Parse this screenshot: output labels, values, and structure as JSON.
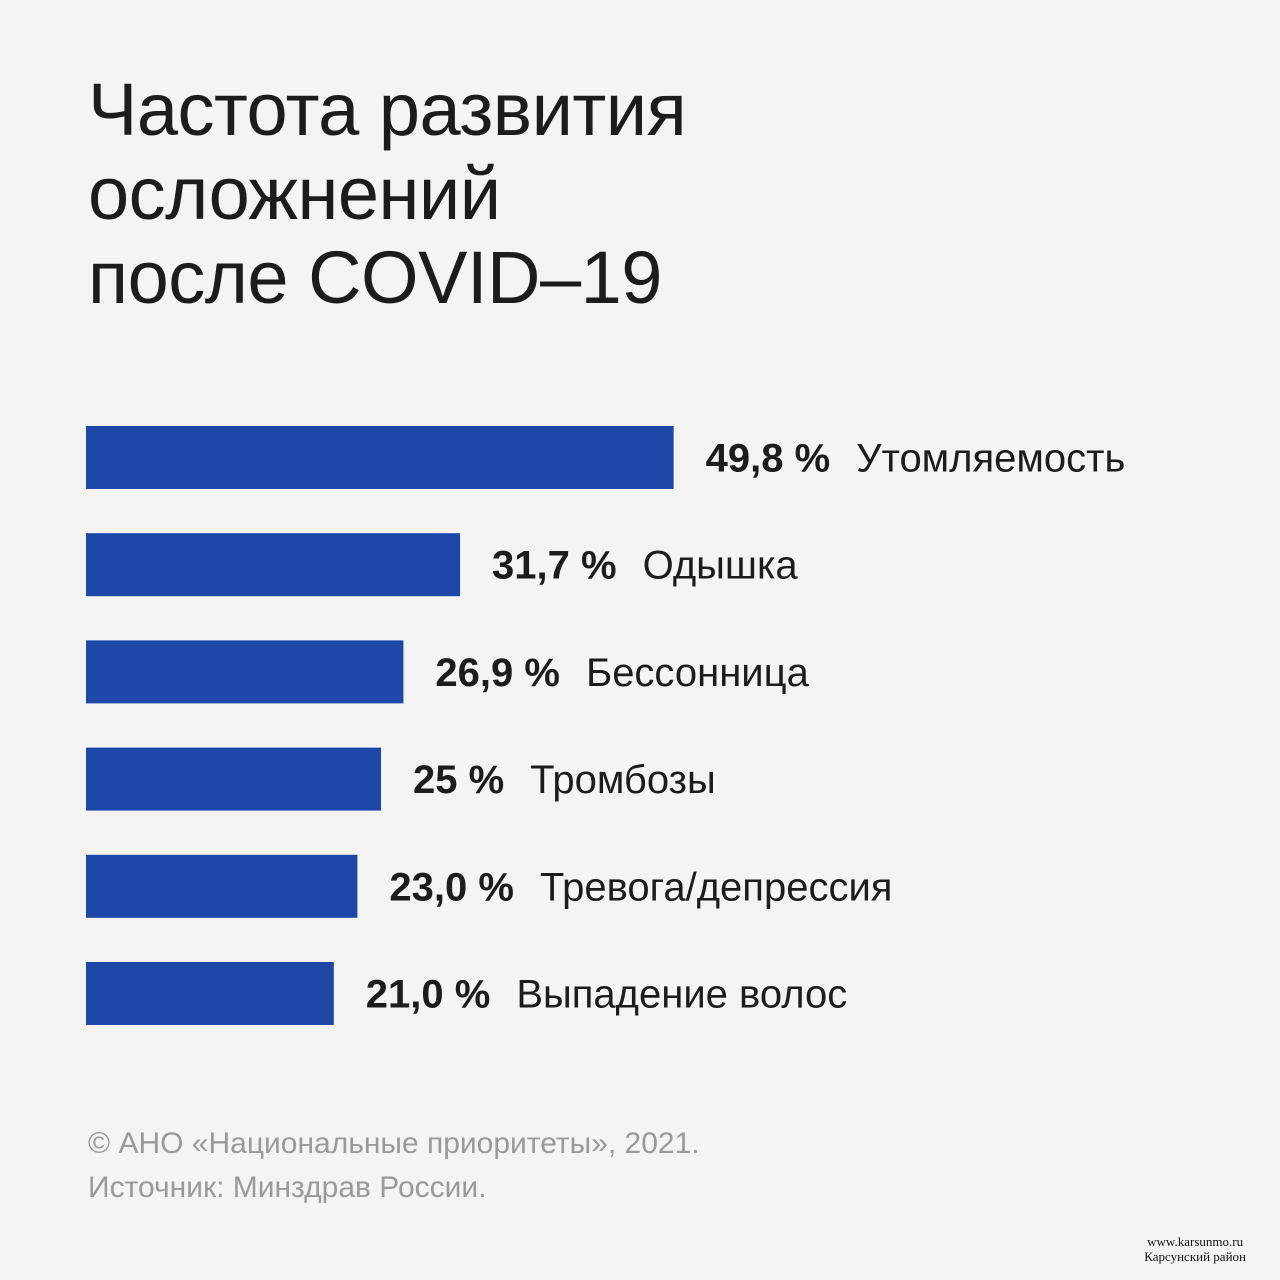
{
  "title_lines": [
    "Частота развития",
    "осложнений",
    "после COVID–19"
  ],
  "colors": {
    "background": "#f4f4f4",
    "bar": "#1d48a8",
    "text": "#1c1c1c",
    "footer_text": "#9a9a9a"
  },
  "chart_data": {
    "type": "bar",
    "orientation": "horizontal",
    "title": "Частота развития осложнений после COVID–19",
    "categories": [
      "Утомляемость",
      "Одышка",
      "Бессонница",
      "Тромбозы",
      "Тревога/депрессия",
      "Выпадение волос"
    ],
    "values": [
      49.8,
      31.7,
      26.9,
      25,
      23.0,
      21.0
    ],
    "value_labels": [
      "49,8 %",
      "31,7 %",
      "26,9 %",
      "25 %",
      "23,0 %",
      "21,0 %"
    ],
    "unit": "%",
    "xlim": [
      0,
      50
    ],
    "grid": false,
    "legend": "none"
  },
  "footer": {
    "copyright": "© АНО «Национальные приоритеты», 2021.",
    "source": "Источник: Минздрав России."
  },
  "watermark": {
    "url": "www.karsunmo.ru",
    "region": "Карсунский район"
  }
}
